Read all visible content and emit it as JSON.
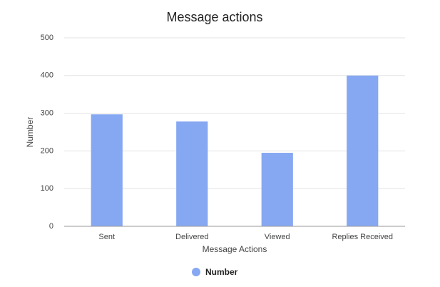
{
  "chart_data": {
    "type": "bar",
    "title": "Message actions",
    "x_label": "Message Actions",
    "y_label": "Number",
    "categories": [
      "Sent",
      "Delivered",
      "Viewed",
      "Replies Received"
    ],
    "series": [
      {
        "name": "Number",
        "color": "#86a8f2",
        "values": [
          297,
          278,
          195,
          400
        ]
      }
    ],
    "ylim": [
      0,
      500
    ],
    "yticks": [
      0,
      100,
      200,
      300,
      400,
      500
    ],
    "grid": true,
    "legend": "bottom"
  }
}
